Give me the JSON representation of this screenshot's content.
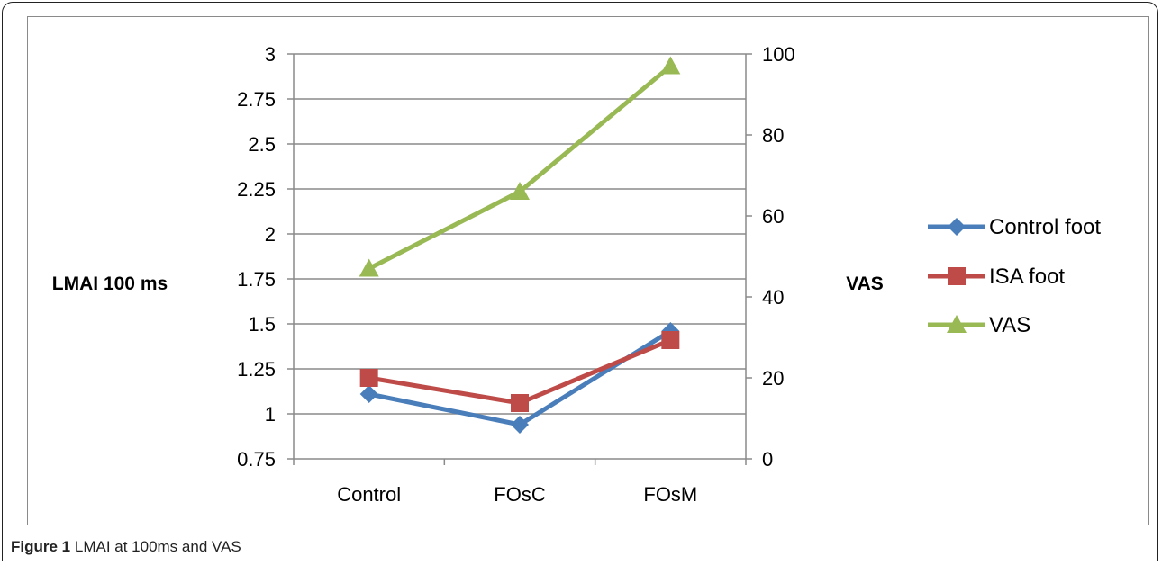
{
  "caption": {
    "label": "Figure 1",
    "text": "LMAI at 100ms and VAS"
  },
  "colors": {
    "control_foot": "#4a7ebb",
    "isa_foot": "#be4b48",
    "vas": "#98b954",
    "grid": "#8a8a8a"
  },
  "chart_data": {
    "type": "line",
    "categories": [
      "Control",
      "FOsC",
      "FOsM"
    ],
    "ylabel": "LMAI 100 ms",
    "y2label": "VAS",
    "ylim": [
      0.75,
      3
    ],
    "y2lim": [
      0,
      100
    ],
    "yticks": [
      "0.75",
      "1",
      "1.25",
      "1.5",
      "1.75",
      "2",
      "2.25",
      "2.5",
      "2.75",
      "3"
    ],
    "y2ticks": [
      "0",
      "20",
      "40",
      "60",
      "80",
      "100"
    ],
    "grid": true,
    "legend_position": "right",
    "series": [
      {
        "name": "Control foot",
        "axis": "left",
        "marker": "diamond",
        "values": [
          1.11,
          0.94,
          1.46
        ]
      },
      {
        "name": "ISA foot",
        "axis": "left",
        "marker": "square",
        "values": [
          1.2,
          1.06,
          1.41
        ]
      },
      {
        "name": "VAS",
        "axis": "right",
        "marker": "triangle",
        "values": [
          47,
          66,
          97
        ]
      }
    ]
  }
}
